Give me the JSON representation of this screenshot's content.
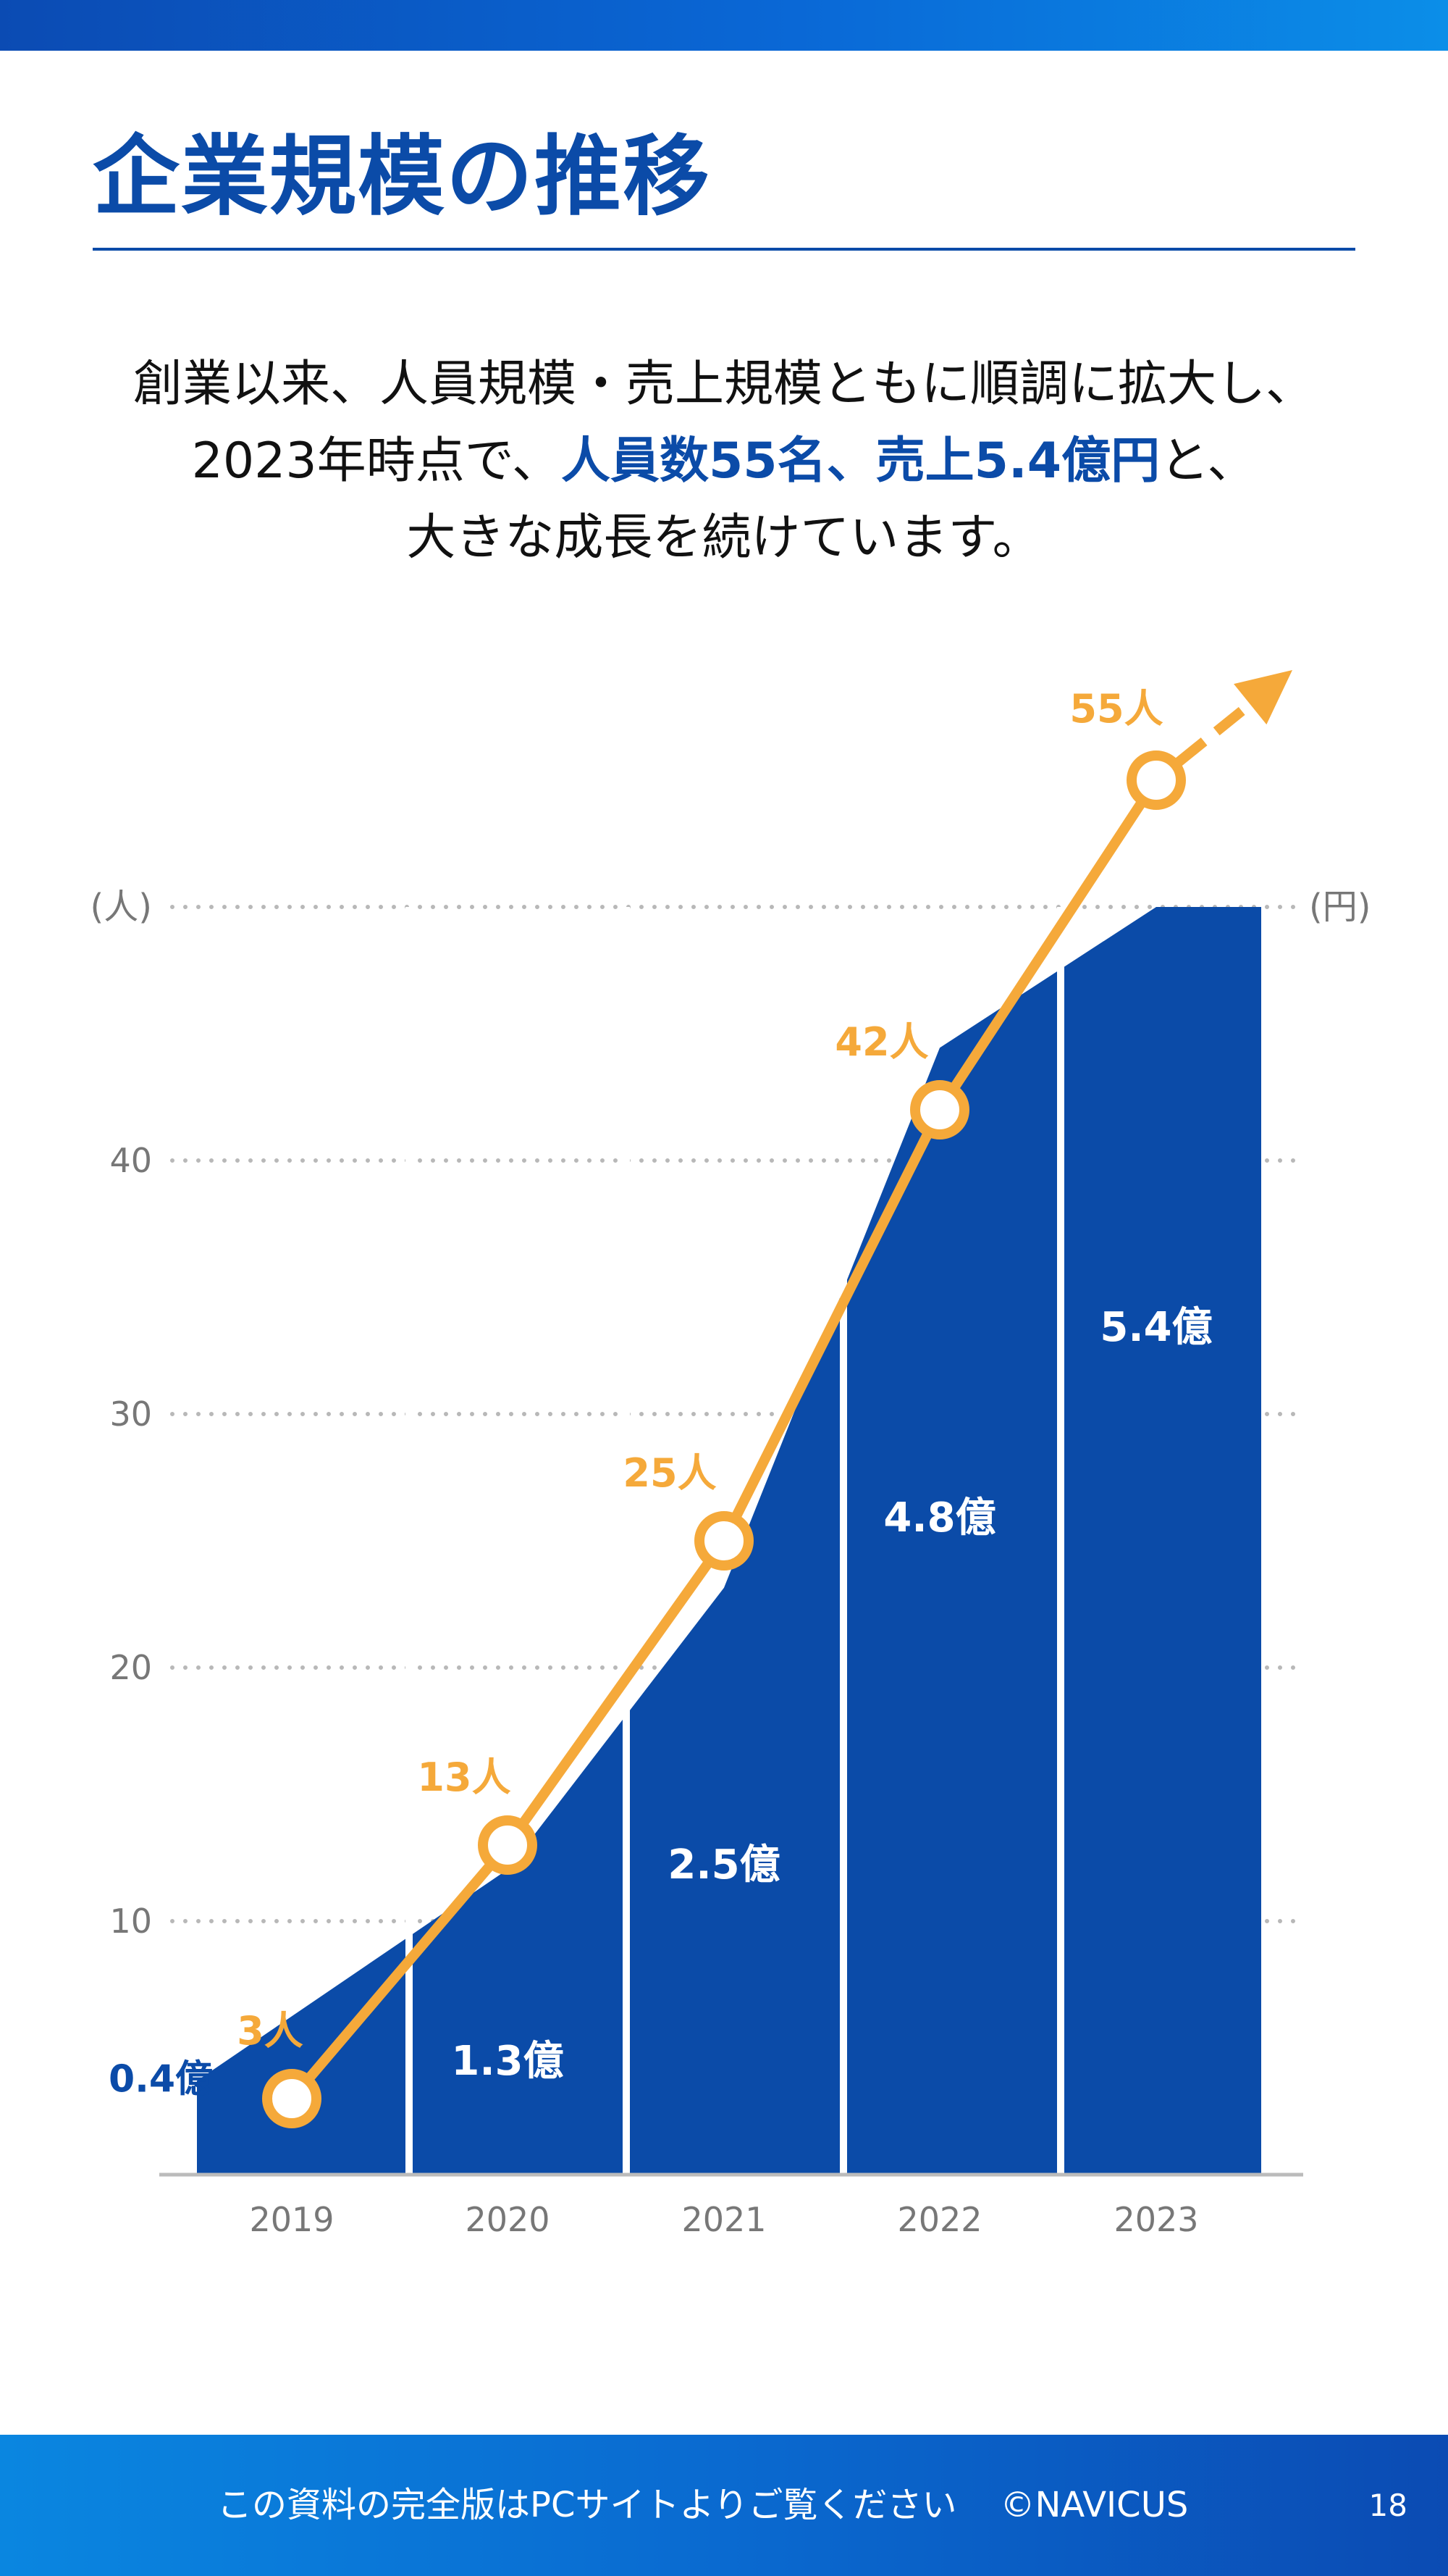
{
  "header": {
    "title": "企業規模の推移"
  },
  "intro": {
    "line1": "創業以来、人員規模・売上規模ともに順調に拡大し、",
    "line2_pre": "2023年時点で、",
    "line2_highlight": "人員数55名、売上5.4億円",
    "line2_post": "と、",
    "line3": "大きな成長を続けています。"
  },
  "colors": {
    "brand_blue": "#0b4ba8",
    "accent_orange": "#f5a93a",
    "grid_gray": "#b8b8b8"
  },
  "chart_data": {
    "type": "area",
    "x": [
      "2019",
      "2020",
      "2021",
      "2022",
      "2023"
    ],
    "left_axis_unit": "(人)",
    "right_axis_unit": "(円)",
    "yticks": [
      10,
      20,
      30,
      40
    ],
    "ylim": [
      0,
      50
    ],
    "grid": true,
    "series": [
      {
        "kind": "area",
        "values": [
          0.4,
          1.3,
          2.5,
          4.8,
          5.4
        ],
        "labels": [
          "0.4億",
          "1.3億",
          "2.5億",
          "4.8億",
          "5.4億"
        ],
        "color": "#0b4ba8"
      },
      {
        "kind": "line",
        "values": [
          3,
          13,
          25,
          42,
          55
        ],
        "labels": [
          "3人",
          "13人",
          "25人",
          "42人",
          "55人"
        ],
        "color": "#f5a93a"
      }
    ]
  },
  "footer": {
    "text": "この資料の完全版はPCサイトよりご覧ください",
    "copyright": "©NAVICUS",
    "page_number": "18"
  }
}
